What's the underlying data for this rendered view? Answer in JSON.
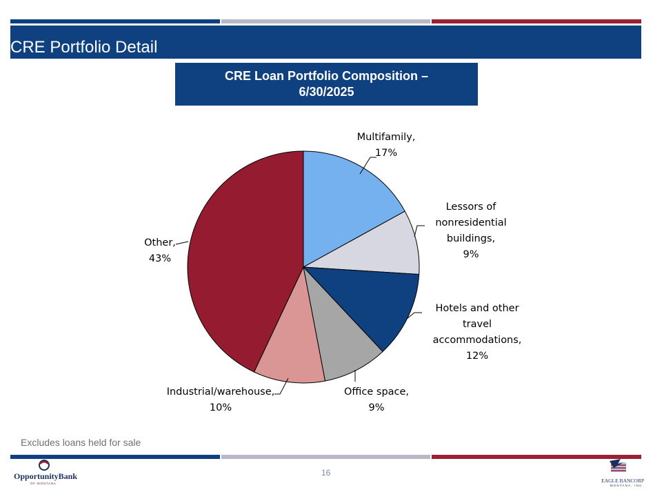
{
  "slide": {
    "title": "CRE Portfolio Detail",
    "chart_title_line1": "CRE Loan Portfolio Composition –",
    "chart_title_line2": "6/30/2025",
    "footnote": "Excludes loans held for sale",
    "page_number": "16"
  },
  "logos": {
    "left_brand": "OpportunityBank",
    "left_sub": "OF MONTANA",
    "right_brand": "EAGLE BANCORP",
    "right_sub": "MONTANA, INC."
  },
  "colors": {
    "navy": "#0f4180",
    "gray_stripe": "#b7b9c9",
    "red_stripe": "#9a2034"
  },
  "chart_data": {
    "type": "pie",
    "title": "CRE Loan Portfolio Composition – 6/30/2025",
    "slices": [
      {
        "label": "Multifamily, 17%",
        "label_lines": [
          "Multifamily,",
          "17%"
        ],
        "value": 17,
        "color": "#75b1ee"
      },
      {
        "label": "Lessors of nonresidential buildings, 9%",
        "label_lines": [
          "Lessors of",
          "nonresidential",
          "buildings,",
          "9%"
        ],
        "value": 9,
        "color": "#d6d7e1"
      },
      {
        "label": "Hotels and other travel accommodations, 12%",
        "label_lines": [
          "Hotels and other",
          "travel",
          "accommodations,",
          "12%"
        ],
        "value": 12,
        "color": "#0f4180"
      },
      {
        "label": "Office space, 9%",
        "label_lines": [
          "Office space,",
          "9%"
        ],
        "value": 9,
        "color": "#a6a6a6"
      },
      {
        "label": "Industrial/warehouse, 10%",
        "label_lines": [
          "Industrial/warehouse,",
          "10%"
        ],
        "value": 10,
        "color": "#d99694"
      },
      {
        "label": "Other, 43%",
        "label_lines": [
          "Other,",
          "43%"
        ],
        "value": 43,
        "color": "#951c30"
      }
    ]
  }
}
